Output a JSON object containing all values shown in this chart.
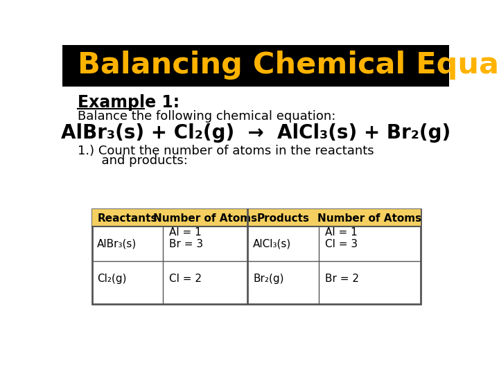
{
  "title": "Balancing Chemical Equations",
  "title_color": "#FFB300",
  "title_bg": "#000000",
  "bg_color": "#FFFFFF",
  "example_label": "Example 1:",
  "subtitle": "Balance the following chemical equation:",
  "equation": "AlBr₃(s) + Cl₂(g)  →  AlCl₃(s) + Br₂(g)",
  "step_text1": "1.) Count the number of atoms in the reactants",
  "step_text2": "      and products:",
  "table_header_bg": "#F5D060",
  "table_border": "#555555",
  "col_headers": [
    "Reactants",
    "Number of Atoms",
    "Products",
    "Number of Atoms"
  ],
  "row1_col1": "AlBr₃(s)",
  "row1_col2a": "Al = 1",
  "row1_col2b": "Br = 3",
  "row1_col3": "AlCl₃(s)",
  "row1_col4a": "Al = 1",
  "row1_col4b": "Cl = 3",
  "row2_col1": "Cl₂(g)",
  "row2_col2": "Cl = 2",
  "row2_col3": "Br₂(g)",
  "row2_col4": "Br = 2"
}
